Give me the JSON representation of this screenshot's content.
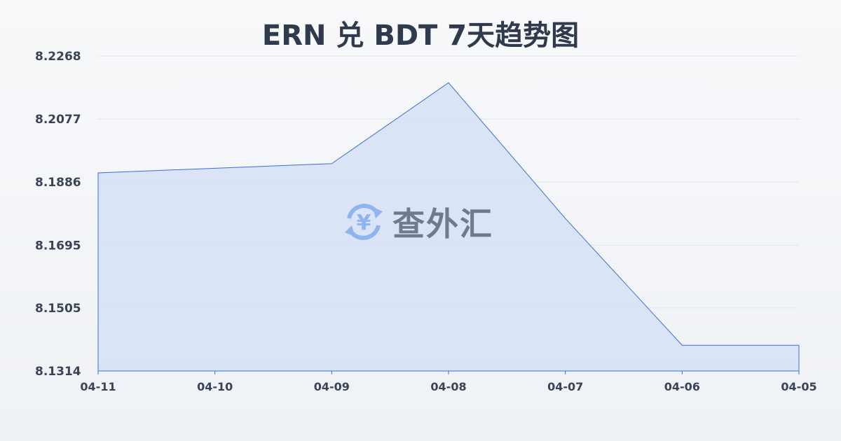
{
  "chart_data": {
    "type": "area",
    "title": "ERN 兑 BDT 7天趋势图",
    "categories": [
      "04-11",
      "04-10",
      "04-09",
      "04-08",
      "04-07",
      "04-06",
      "04-05"
    ],
    "values": [
      8.1914,
      8.1928,
      8.1942,
      8.2187,
      8.1776,
      8.1392,
      8.1392
    ],
    "yticks": [
      "8.2268",
      "8.2077",
      "8.1886",
      "8.1695",
      "8.1505",
      "8.1314"
    ],
    "ylim": [
      8.1314,
      8.2268
    ],
    "grid": true,
    "line_color": "#3b6fd4",
    "fill_color": "#d5e1f6"
  },
  "watermark": {
    "text": "查外汇",
    "icon": "yen-exchange-icon",
    "icon_color": "#8fb4ee"
  }
}
